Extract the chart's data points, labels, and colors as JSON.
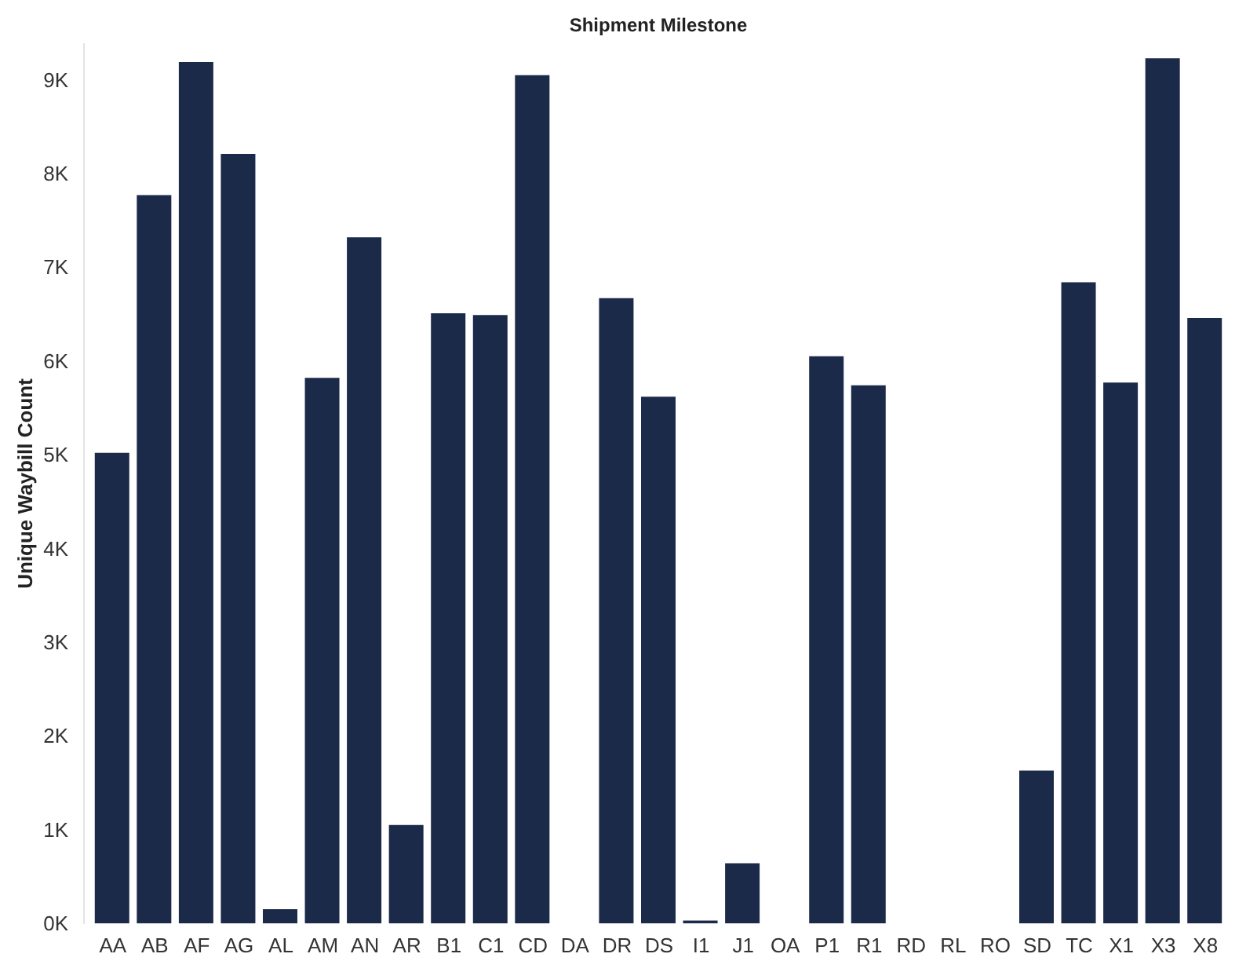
{
  "chart_data": {
    "type": "bar",
    "title": "Shipment Milestone",
    "ylabel": "Unique Waybill Count",
    "categories": [
      "AA",
      "AB",
      "AF",
      "AG",
      "AL",
      "AM",
      "AN",
      "AR",
      "B1",
      "C1",
      "CD",
      "DA",
      "DR",
      "DS",
      "I1",
      "J1",
      "OA",
      "P1",
      "R1",
      "RD",
      "RL",
      "RO",
      "SD",
      "TC",
      "X1",
      "X3",
      "X8"
    ],
    "values": [
      5020,
      7770,
      9190,
      8210,
      150,
      5820,
      7320,
      1050,
      6510,
      6490,
      9050,
      null,
      6670,
      5620,
      30,
      640,
      null,
      6050,
      5740,
      null,
      null,
      null,
      1630,
      6840,
      5770,
      9230,
      6460
    ],
    "color": "#1c2a4a",
    "ylim": [
      0,
      9400
    ],
    "yticks": [
      {
        "value": 0,
        "label": "0K"
      },
      {
        "value": 1000,
        "label": "1K"
      },
      {
        "value": 2000,
        "label": "2K"
      },
      {
        "value": 3000,
        "label": "3K"
      },
      {
        "value": 4000,
        "label": "4K"
      },
      {
        "value": 5000,
        "label": "5K"
      },
      {
        "value": 6000,
        "label": "6K"
      },
      {
        "value": 7000,
        "label": "7K"
      },
      {
        "value": 8000,
        "label": "8K"
      },
      {
        "value": 9000,
        "label": "9K"
      }
    ],
    "grid": false
  }
}
